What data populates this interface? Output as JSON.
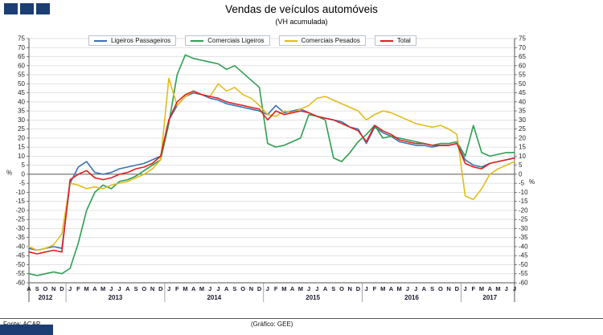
{
  "brand": {
    "color": "#1D3E75"
  },
  "header": {
    "title": "Vendas de veículos automóveis",
    "subtitle": "(VH acumulada)"
  },
  "footer": {
    "source": "Fonte: ACAP",
    "credit": "(Gráfico: GEE)"
  },
  "chart_data": {
    "type": "line",
    "title": "Vendas de veículos automóveis",
    "subtitle": "(VH acumulada)",
    "ylabel": "%",
    "ylabel_right": "%",
    "ylim": [
      -60,
      75
    ],
    "y_tick_step": 5,
    "grid": true,
    "legend_position": "top-inside",
    "x_groups": [
      {
        "year": "2012",
        "months": [
          "A",
          "S",
          "O",
          "N",
          "D"
        ]
      },
      {
        "year": "2013",
        "months": [
          "J",
          "F",
          "M",
          "A",
          "M",
          "J",
          "J",
          "A",
          "S",
          "O",
          "N",
          "D"
        ]
      },
      {
        "year": "2014",
        "months": [
          "J",
          "F",
          "M",
          "A",
          "M",
          "J",
          "J",
          "A",
          "S",
          "O",
          "N",
          "D"
        ]
      },
      {
        "year": "2015",
        "months": [
          "J",
          "F",
          "M",
          "A",
          "M",
          "J",
          "J",
          "A",
          "S",
          "O",
          "N",
          "D"
        ]
      },
      {
        "year": "2016",
        "months": [
          "J",
          "F",
          "M",
          "A",
          "M",
          "J",
          "J",
          "A",
          "S",
          "O",
          "N",
          "D"
        ]
      },
      {
        "year": "2017",
        "months": [
          "J",
          "F",
          "M",
          "A",
          "M",
          "J",
          "J"
        ]
      }
    ],
    "series": [
      {
        "name": "Ligeiros Passageiros",
        "color": "#3B73B1",
        "values": [
          -41,
          -42,
          -41,
          -40,
          -41,
          -5,
          4,
          7,
          1,
          0,
          1,
          3,
          4,
          5,
          6,
          8,
          10,
          30,
          38,
          43,
          45,
          44,
          42,
          41,
          39,
          38,
          37,
          36,
          35,
          33,
          38,
          34,
          35,
          36,
          34,
          32,
          31,
          30,
          29,
          26,
          25,
          17,
          26,
          23,
          21,
          18,
          17,
          16,
          16,
          15,
          16,
          16,
          17,
          8,
          5,
          4,
          6,
          7,
          8,
          9
        ]
      },
      {
        "name": "Comerciais Ligeiros",
        "color": "#2E9E52",
        "values": [
          -55,
          -56,
          -55,
          -54,
          -55,
          -52,
          -38,
          -20,
          -10,
          -6,
          -8,
          -4,
          -3,
          -1,
          2,
          5,
          8,
          28,
          55,
          66,
          64,
          63,
          62,
          61,
          58,
          60,
          56,
          52,
          48,
          17,
          15,
          16,
          18,
          20,
          33,
          32,
          30,
          9,
          7,
          12,
          18,
          22,
          27,
          20,
          21,
          20,
          19,
          18,
          17,
          16,
          17,
          17,
          18,
          10,
          27,
          12,
          10,
          11,
          12,
          12
        ]
      },
      {
        "name": "Comerciais Pesados",
        "color": "#E2BC1B",
        "values": [
          -40,
          -42,
          -41,
          -39,
          -33,
          -5,
          -6,
          -8,
          -7,
          -8,
          -6,
          -5,
          -4,
          -2,
          0,
          3,
          8,
          53,
          38,
          43,
          46,
          44,
          43,
          50,
          46,
          48,
          44,
          42,
          38,
          33,
          32,
          35,
          34,
          36,
          38,
          42,
          43,
          41,
          39,
          37,
          35,
          30,
          33,
          35,
          34,
          32,
          30,
          28,
          27,
          26,
          27,
          25,
          22,
          -12,
          -14,
          -8,
          0,
          3,
          5,
          7
        ]
      },
      {
        "name": "Total",
        "color": "#E02020",
        "values": [
          -43,
          -44,
          -43,
          -42,
          -43,
          -3,
          0,
          2,
          -2,
          -3,
          -2,
          0,
          1,
          3,
          4,
          6,
          10,
          30,
          40,
          44,
          46,
          44,
          43,
          42,
          40,
          39,
          38,
          37,
          36,
          30,
          35,
          33,
          34,
          35,
          34,
          32,
          31,
          30,
          28,
          26,
          24,
          18,
          27,
          24,
          22,
          19,
          18,
          17,
          17,
          16,
          16,
          16,
          17,
          6,
          4,
          3,
          6,
          7,
          8,
          9
        ]
      }
    ]
  }
}
